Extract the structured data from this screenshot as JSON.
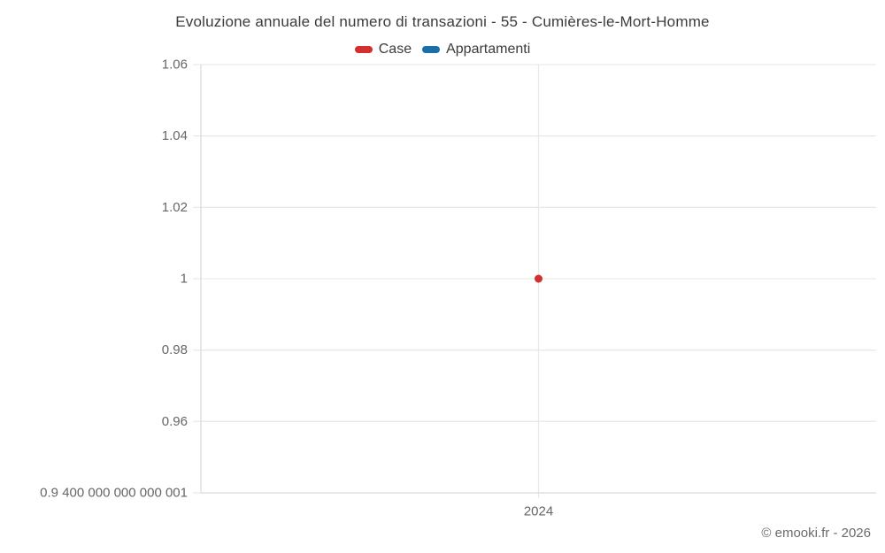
{
  "chart_data": {
    "type": "scatter",
    "title": "Evoluzione annuale del numero di transazioni - 55 - Cumières-le-Mort-Homme",
    "x_categories": [
      "2024"
    ],
    "series": [
      {
        "name": "Case",
        "color": "#d32f2f",
        "values": [
          1
        ]
      },
      {
        "name": "Appartamenti",
        "color": "#1a6fa8",
        "values": [
          null
        ]
      }
    ],
    "xlabel": "",
    "ylabel": "",
    "ylim": [
      0.9400000000000001,
      1.06
    ],
    "y_ticks": [
      {
        "value": 0.9400000000000001,
        "label": "0.9 400 000 000 000 001"
      },
      {
        "value": 0.96,
        "label": "0.96"
      },
      {
        "value": 0.98,
        "label": "0.98"
      },
      {
        "value": 1.0,
        "label": "1"
      },
      {
        "value": 1.02,
        "label": "1.02"
      },
      {
        "value": 1.04,
        "label": "1.04"
      },
      {
        "value": 1.06,
        "label": "1.06"
      }
    ],
    "grid": true,
    "legend_position": "top",
    "colors": {
      "grid_line": "#e9e9e9",
      "axis_line": "#dcdcdc",
      "tick_label": "#666666",
      "title_text": "#3b3b3b"
    }
  },
  "footer": {
    "attribution": "© emooki.fr - 2026"
  }
}
